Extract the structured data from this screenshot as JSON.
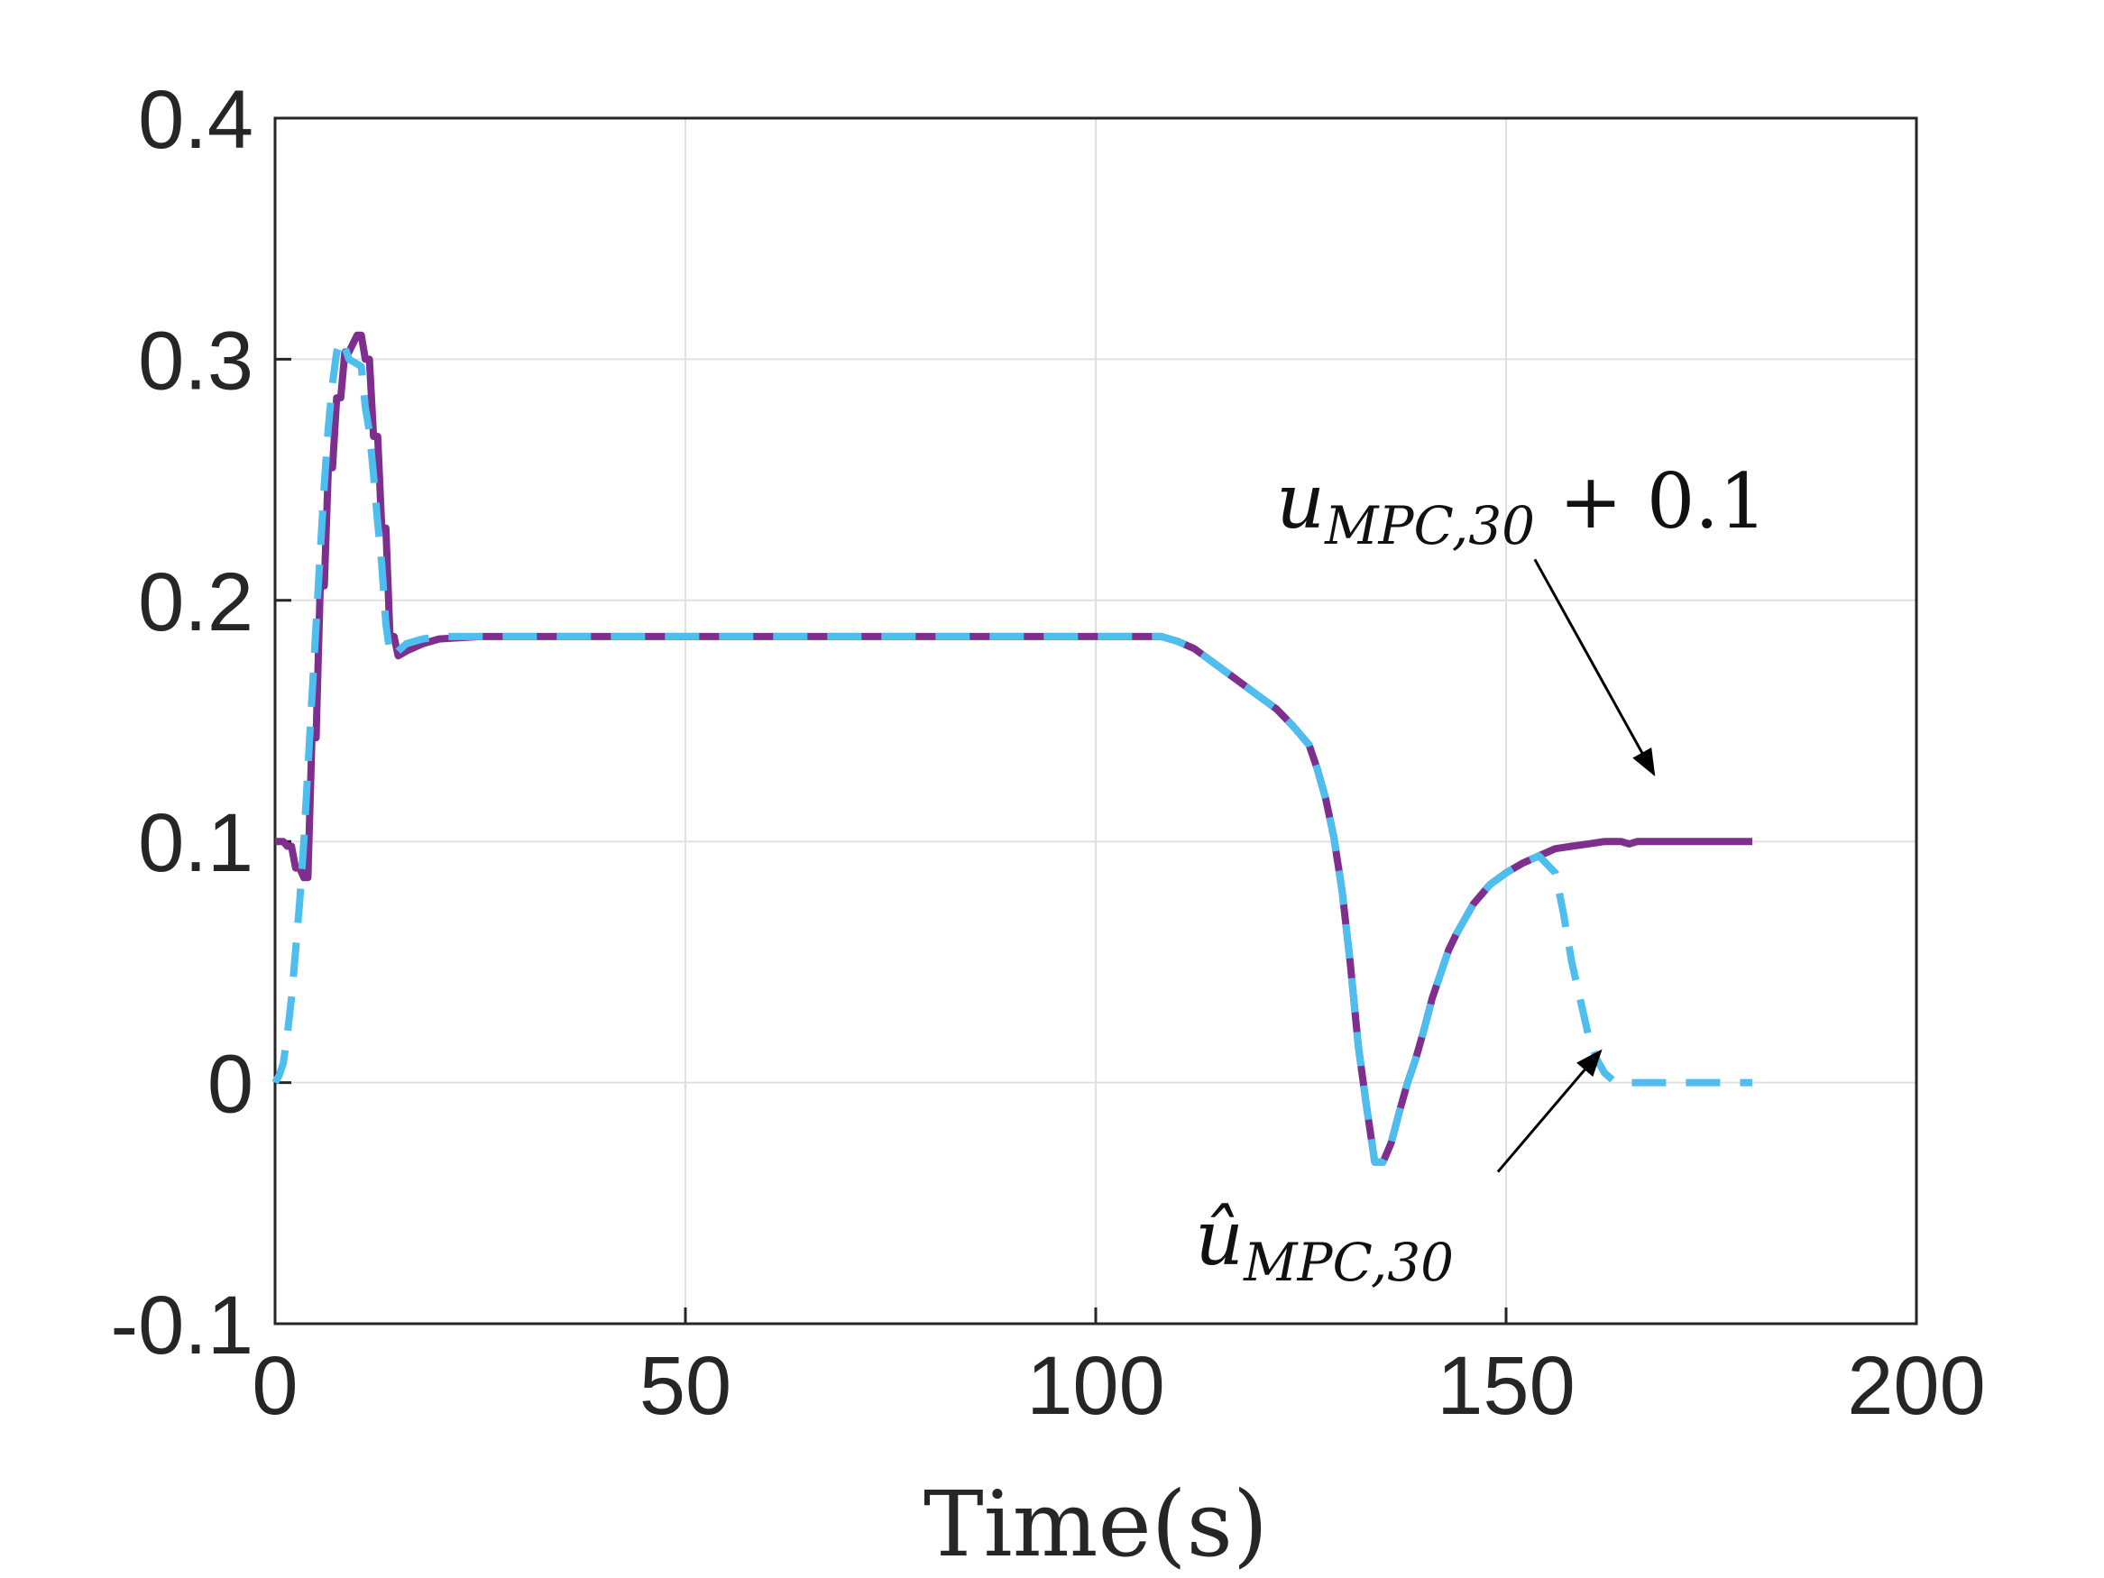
{
  "chart_data": {
    "type": "line",
    "title": "",
    "xlabel": "Time(s)",
    "ylabel": "",
    "xlim": [
      0,
      200
    ],
    "ylim": [
      -0.1,
      0.4
    ],
    "xticks": [
      0,
      50,
      100,
      150,
      200
    ],
    "xtick_labels": [
      "0",
      "50",
      "100",
      "150",
      "200"
    ],
    "yticks": [
      -0.1,
      0,
      0.1,
      0.2,
      0.3,
      0.4
    ],
    "ytick_labels": [
      "-0.1",
      "0",
      "0.1",
      "0.2",
      "0.3",
      "0.4"
    ],
    "grid": true,
    "colors": {
      "series1": "#7E2F8E",
      "series2": "#4DBEEE",
      "grid": "#e0e0e0",
      "axis": "#262626"
    },
    "series": [
      {
        "name": "u_MPC,30 + 0.1",
        "style": "solid",
        "x": [
          0,
          1,
          1.5,
          2,
          2.5,
          3,
          3.5,
          4,
          4.5,
          5,
          5.5,
          6,
          6.5,
          7,
          7.5,
          8,
          8.5,
          9,
          10,
          10.5,
          11,
          11.5,
          12,
          12.5,
          13,
          13.5,
          14,
          14.5,
          15,
          16,
          18,
          20,
          25,
          30,
          40,
          60,
          80,
          100,
          108,
          110,
          112,
          114,
          116,
          118,
          120,
          122,
          124,
          126,
          127,
          128,
          129,
          130,
          131,
          132,
          133,
          134,
          135,
          136,
          137,
          138,
          139,
          140,
          141,
          142,
          143,
          144,
          145,
          146,
          147,
          148,
          150,
          152,
          154,
          156,
          158,
          160,
          162,
          164,
          165,
          166,
          168,
          170,
          175,
          180
        ],
        "values": [
          0.1,
          0.1,
          0.098,
          0.098,
          0.089,
          0.089,
          0.085,
          0.085,
          0.143,
          0.143,
          0.206,
          0.206,
          0.255,
          0.255,
          0.284,
          0.284,
          0.303,
          0.303,
          0.31,
          0.31,
          0.3,
          0.3,
          0.268,
          0.268,
          0.23,
          0.23,
          0.185,
          0.185,
          0.177,
          0.179,
          0.182,
          0.184,
          0.185,
          0.185,
          0.185,
          0.185,
          0.185,
          0.185,
          0.185,
          0.183,
          0.18,
          0.175,
          0.17,
          0.165,
          0.16,
          0.155,
          0.148,
          0.14,
          0.13,
          0.118,
          0.102,
          0.08,
          0.05,
          0.015,
          -0.01,
          -0.033,
          -0.033,
          -0.025,
          -0.012,
          0.0,
          0.01,
          0.022,
          0.035,
          0.045,
          0.055,
          0.062,
          0.068,
          0.074,
          0.078,
          0.082,
          0.087,
          0.091,
          0.094,
          0.097,
          0.098,
          0.099,
          0.1,
          0.1,
          0.099,
          0.1,
          0.1,
          0.1,
          0.1,
          0.1
        ]
      },
      {
        "name": "û_MPC,30",
        "style": "dashed",
        "x": [
          0,
          0.5,
          1,
          1.5,
          2,
          2.5,
          3,
          3.5,
          4,
          4.5,
          5,
          5.5,
          6,
          6.5,
          7,
          7.5,
          8,
          8.5,
          9,
          10,
          10.5,
          11,
          11.5,
          12,
          12.5,
          13,
          13.5,
          14,
          14.5,
          15,
          16,
          18,
          20,
          25,
          30,
          40,
          60,
          80,
          100,
          108,
          110,
          112,
          114,
          116,
          118,
          120,
          122,
          124,
          126,
          127,
          128,
          129,
          130,
          131,
          132,
          133,
          134,
          135,
          136,
          137,
          138,
          139,
          140,
          141,
          142,
          143,
          144,
          145,
          146,
          147,
          148,
          150,
          152,
          154,
          156,
          157,
          158,
          159,
          160,
          161,
          162,
          163,
          164,
          165,
          166,
          168,
          170,
          175,
          180
        ],
        "values": [
          0.0,
          0.003,
          0.008,
          0.02,
          0.035,
          0.055,
          0.075,
          0.1,
          0.13,
          0.16,
          0.19,
          0.22,
          0.248,
          0.272,
          0.29,
          0.303,
          0.308,
          0.305,
          0.3,
          0.298,
          0.297,
          0.28,
          0.27,
          0.252,
          0.232,
          0.215,
          0.19,
          0.178,
          0.177,
          0.179,
          0.182,
          0.184,
          0.185,
          0.185,
          0.185,
          0.185,
          0.185,
          0.185,
          0.185,
          0.185,
          0.183,
          0.18,
          0.175,
          0.17,
          0.165,
          0.16,
          0.155,
          0.148,
          0.14,
          0.13,
          0.118,
          0.102,
          0.08,
          0.05,
          0.015,
          -0.01,
          -0.033,
          -0.033,
          -0.025,
          -0.012,
          0.0,
          0.01,
          0.022,
          0.035,
          0.045,
          0.055,
          0.062,
          0.068,
          0.074,
          0.078,
          0.082,
          0.087,
          0.091,
          0.094,
          0.087,
          0.07,
          0.05,
          0.035,
          0.02,
          0.01,
          0.004,
          0.001,
          0.0,
          0.0,
          0.0,
          0.0,
          0.0,
          0.0,
          0.0
        ]
      }
    ],
    "annotations": [
      {
        "name": "upper-annotation",
        "text_main": "u",
        "text_sub": "MPC,30",
        "text_tail": " + 0.1",
        "arrow_from": [
          153.5,
          0.217
        ],
        "arrow_to": [
          168,
          0.128
        ]
      },
      {
        "name": "lower-annotation",
        "text_main": "û",
        "text_sub": "MPC,30",
        "text_tail": "",
        "arrow_from": [
          149,
          -0.037
        ],
        "arrow_to": [
          161.5,
          0.013
        ]
      }
    ]
  }
}
